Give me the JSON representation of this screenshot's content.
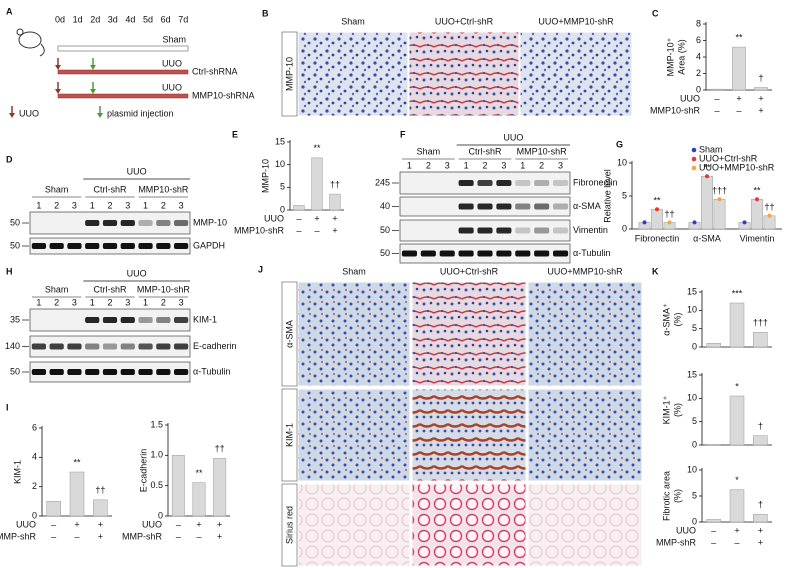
{
  "panel_letters": [
    "A",
    "B",
    "C",
    "D",
    "E",
    "F",
    "G",
    "H",
    "I",
    "J",
    "K"
  ],
  "timeline": {
    "days": [
      "0d",
      "1d",
      "2d",
      "3d",
      "4d",
      "5d",
      "6d",
      "7d"
    ],
    "rows": [
      {
        "label": "Sham"
      },
      {
        "label": "UUO",
        "name": "Ctrl-shRNA"
      },
      {
        "label": "UUO",
        "name": "MMP10-shRNA"
      }
    ],
    "legend": [
      "UUO",
      "plasmid injection"
    ]
  },
  "micrographs_b": {
    "columns": [
      "Sham",
      "UUO+Ctrl-shR",
      "UUO+MMP10-shR"
    ],
    "row_label": "MMP-10"
  },
  "blot_d": {
    "group": "UUO",
    "subgroups": [
      "Sham",
      "Ctrl-shR",
      "MMP10-shR"
    ],
    "lanes": [
      "1",
      "2",
      "3",
      "1",
      "2",
      "3",
      "1",
      "2",
      "3"
    ],
    "markers": [
      "50",
      "50"
    ],
    "bands": [
      "MMP-10",
      "GAPDH"
    ]
  },
  "blot_f": {
    "group": "UUO",
    "subgroups": [
      "Sham",
      "Ctrl-shR",
      "MMP10-shR"
    ],
    "lanes": [
      "1",
      "2",
      "3",
      "1",
      "2",
      "3",
      "1",
      "2",
      "3"
    ],
    "markers": [
      "245",
      "40",
      "50",
      "50"
    ],
    "bands": [
      "Fibronectin",
      "α-SMA",
      "Vimentin",
      "α-Tubulin"
    ]
  },
  "blot_h": {
    "group": "UUO",
    "subgroups": [
      "Sham",
      "Ctrl-shR",
      "MMP-10-shR"
    ],
    "lanes": [
      "1",
      "2",
      "3",
      "1",
      "2",
      "3",
      "1",
      "2",
      "3"
    ],
    "markers": [
      "35",
      "140",
      "50"
    ],
    "bands": [
      "KIM-1",
      "E-cadherin",
      "α-Tubulin"
    ]
  },
  "micrographs_j": {
    "columns": [
      "Sham",
      "UUO+Ctrl-shR",
      "UUO+MMP10-shR"
    ],
    "rows": [
      "α-SMA",
      "KIM-1",
      "Sirius red"
    ]
  },
  "chart_data": [
    {
      "type": "bar",
      "ylabel": [
        "MMP-10⁺",
        "Area (%)"
      ],
      "categories": [
        null,
        null,
        null
      ],
      "values": [
        0.1,
        5.2,
        0.3
      ],
      "color": "#d9d9d9",
      "annotations": [
        null,
        "**",
        "†"
      ],
      "ylim": [
        0,
        8
      ],
      "yticks": [
        0,
        2,
        4,
        6,
        8
      ],
      "conditions": [
        {
          "name": "UUO",
          "marks": [
            "–",
            "+",
            "+"
          ]
        },
        {
          "name": "MMP10-shR",
          "marks": [
            "–",
            "–",
            "+"
          ]
        }
      ]
    },
    {
      "type": "bar",
      "ylabel": [
        "MMP-10"
      ],
      "categories": [
        null,
        null,
        null
      ],
      "values": [
        1,
        11.5,
        3.5
      ],
      "color": "#d9d9d9",
      "annotations": [
        null,
        "**",
        "††"
      ],
      "ylim": [
        0,
        15
      ],
      "yticks": [
        0,
        5,
        10,
        15
      ],
      "conditions": [
        {
          "name": "UUO",
          "marks": [
            "–",
            "+",
            "+"
          ]
        },
        {
          "name": "MMP10-shR",
          "marks": [
            "–",
            "–",
            "+"
          ]
        }
      ]
    },
    {
      "type": "grouped_bar",
      "ylabel": [
        "Relative level"
      ],
      "categories": [
        "Fibronectin",
        "α-SMA",
        "Vimentin"
      ],
      "ylim": [
        0,
        10
      ],
      "yticks": [
        0,
        5,
        10
      ],
      "series": [
        {
          "name": "Sham",
          "color": "#2a3fd1",
          "values": [
            1,
            1,
            1
          ]
        },
        {
          "name": "UUO+Ctrl-shR",
          "color": "#e8372f",
          "values": [
            3,
            8,
            4.5
          ],
          "annotations": [
            "**",
            "**",
            "**"
          ]
        },
        {
          "name": "UUO+MMP10-shR",
          "color": "#f4a442",
          "values": [
            1,
            4.5,
            2
          ],
          "annotations": [
            "††",
            "†††",
            "††"
          ]
        }
      ]
    },
    {
      "type": "bar",
      "ylabel": [
        "KIM-1"
      ],
      "categories": [
        null,
        null,
        null
      ],
      "values": [
        1,
        3,
        1.1
      ],
      "color": "#d9d9d9",
      "annotations": [
        null,
        "**",
        "††"
      ],
      "ylim": [
        0,
        6
      ],
      "yticks": [
        0,
        2,
        4,
        6
      ],
      "conditions": [
        {
          "name": "UUO",
          "marks": [
            "–",
            "+",
            "+"
          ]
        },
        {
          "name": "MMP-shR",
          "marks": [
            "–",
            "–",
            "+"
          ]
        }
      ]
    },
    {
      "type": "bar",
      "ylabel": [
        "E-cadherin"
      ],
      "categories": [
        null,
        null,
        null
      ],
      "values": [
        1,
        0.55,
        0.95
      ],
      "color": "#d9d9d9",
      "annotations": [
        null,
        "**",
        "††"
      ],
      "ylim": [
        0,
        1.5
      ],
      "yticks": [
        0,
        0.5,
        {
          "value": 1,
          "label": "1.0"
        },
        1.5
      ],
      "conditions": [
        {
          "name": "UUO",
          "marks": [
            "–",
            "+",
            "+"
          ]
        },
        {
          "name": "MMP-shR",
          "marks": [
            "–",
            "–",
            "+"
          ]
        }
      ]
    },
    {
      "type": "bar",
      "ylabel": [
        "α-SMA⁺",
        "(%)"
      ],
      "categories": [
        null,
        null,
        null
      ],
      "values": [
        1,
        12,
        4
      ],
      "color": "#d9d9d9",
      "annotations": [
        null,
        "***",
        "†††"
      ],
      "ylim": [
        0,
        15
      ],
      "yticks": [
        0,
        5,
        10,
        15
      ]
    },
    {
      "type": "bar",
      "ylabel": [
        "KIM-1⁺",
        "(%)"
      ],
      "categories": [
        null,
        null,
        null
      ],
      "values": [
        0.1,
        10.5,
        2
      ],
      "color": "#d9d9d9",
      "annotations": [
        null,
        "*",
        "†"
      ],
      "ylim": [
        0,
        15
      ],
      "yticks": [
        0,
        5,
        10,
        15
      ]
    },
    {
      "type": "bar",
      "ylabel": [
        "Fibrotic area",
        "(%)"
      ],
      "categories": [
        null,
        null,
        null
      ],
      "values": [
        0.5,
        6.2,
        1.5
      ],
      "color": "#d9d9d9",
      "annotations": [
        null,
        "*",
        "†"
      ],
      "ylim": [
        0,
        10
      ],
      "yticks": [
        0,
        5,
        10
      ],
      "conditions": [
        {
          "name": "UUO",
          "marks": [
            "–",
            "+",
            "+"
          ]
        },
        {
          "name": "MMP-shR",
          "marks": [
            "–",
            "–",
            "+"
          ]
        }
      ]
    }
  ]
}
